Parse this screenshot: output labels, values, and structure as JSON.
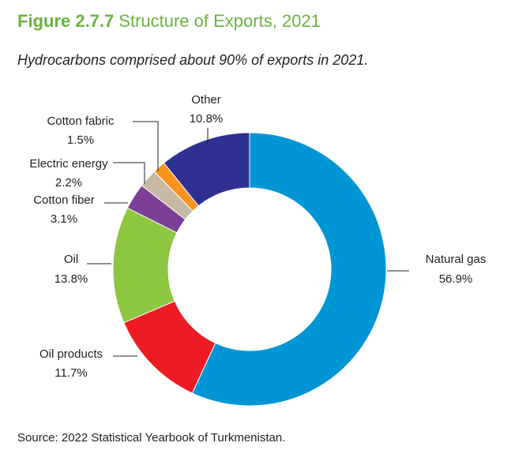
{
  "figure": {
    "number": "Figure 2.7.7",
    "title": "Structure of Exports, 2021",
    "subtitle": "Hydrocarbons comprised about 90% of exports in 2021.",
    "source": "Source: 2022 Statistical Yearbook of Turkmenistan."
  },
  "chart_data": {
    "type": "pie",
    "variant": "donut",
    "legend": "none (direct labels)",
    "unit": "%",
    "slices": [
      {
        "name": "Natural gas",
        "value": 56.9,
        "label": "56.9%",
        "color": "#0096d6"
      },
      {
        "name": "Oil products",
        "value": 11.7,
        "label": "11.7%",
        "color": "#ed1c24"
      },
      {
        "name": "Oil",
        "value": 13.8,
        "label": "13.8%",
        "color": "#8dc63f"
      },
      {
        "name": "Cotton fiber",
        "value": 3.1,
        "label": "3.1%",
        "color": "#7b3f98"
      },
      {
        "name": "Electric energy",
        "value": 2.2,
        "label": "2.2%",
        "color": "#c8b9a4"
      },
      {
        "name": "Cotton fabric",
        "value": 1.5,
        "label": "1.5%",
        "color": "#f7941d"
      },
      {
        "name": "Other",
        "value": 10.8,
        "label": "10.8%",
        "color": "#2e3192"
      }
    ]
  }
}
